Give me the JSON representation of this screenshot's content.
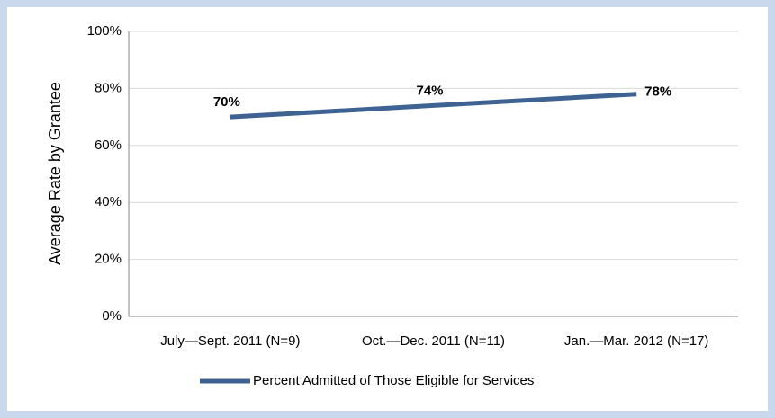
{
  "chart_data": {
    "type": "line",
    "y_axis_label": "Average Rate by Grantee",
    "categories": [
      "July—Sept. 2011 (N=9)",
      "Oct.—Dec. 2011 (N=11)",
      "Jan.—Mar. 2012 (N=17)"
    ],
    "series": [
      {
        "name": "Percent Admitted of Those Eligible for Services",
        "color": "#3e6393",
        "values": [
          70,
          74,
          78
        ],
        "value_labels": [
          "70%",
          "74%",
          "78%"
        ]
      }
    ],
    "ylim": [
      0,
      100
    ],
    "yticks": [
      {
        "value": 0,
        "label": "0%"
      },
      {
        "value": 20,
        "label": "20%"
      },
      {
        "value": 40,
        "label": "40%"
      },
      {
        "value": 60,
        "label": "60%"
      },
      {
        "value": 80,
        "label": "80%"
      },
      {
        "value": 100,
        "label": "100%"
      }
    ],
    "grid": true,
    "legend": "bottom"
  }
}
